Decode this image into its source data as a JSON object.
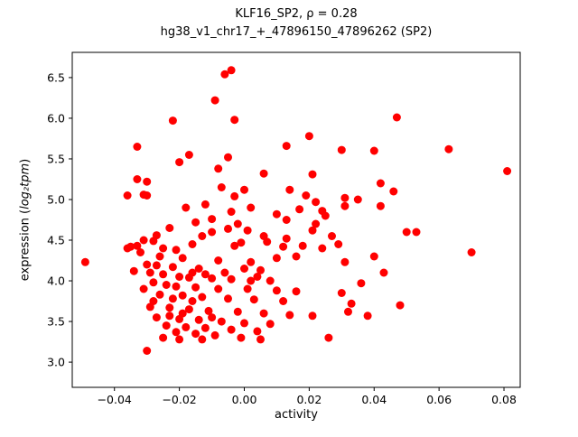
{
  "figure": {
    "title_line1": "KLF16_SP2, ρ = 0.28",
    "title_line2": "hg38_v1_chr17_+_47896150_47896262 (SP2)",
    "ylabel_prefix": "expression (",
    "ylabel_math": "log₂tpm",
    "ylabel_suffix": ")",
    "xlabel": "activity"
  },
  "chart_data": {
    "type": "scatter",
    "title": "KLF16_SP2, ρ = 0.28",
    "subtitle": "hg38_v1_chr17_+_47896150_47896262 (SP2)",
    "xlabel": "activity",
    "ylabel": "expression (log₂tpm)",
    "xlim": [
      -0.053,
      0.085
    ],
    "ylim": [
      2.69,
      6.81
    ],
    "x_ticks": [
      -0.04,
      -0.02,
      0.0,
      0.02,
      0.04,
      0.06,
      0.08
    ],
    "x_tick_labels": [
      "−0.04",
      "−0.02",
      "0.00",
      "0.02",
      "0.04",
      "0.06",
      "0.08"
    ],
    "y_ticks": [
      3.0,
      3.5,
      4.0,
      4.5,
      5.0,
      5.5,
      6.0,
      6.5
    ],
    "y_tick_labels": [
      "3.0",
      "3.5",
      "4.0",
      "4.5",
      "5.0",
      "5.5",
      "6.0",
      "6.5"
    ],
    "grid": false,
    "legend": "none",
    "point_color": "#ff0000",
    "point_radius": 4.5,
    "axis_color": "#000000",
    "points": [
      [
        -0.004,
        6.59
      ],
      [
        -0.006,
        6.54
      ],
      [
        -0.009,
        6.22
      ],
      [
        -0.022,
        5.97
      ],
      [
        -0.003,
        5.98
      ],
      [
        0.047,
        6.01
      ],
      [
        0.02,
        5.78
      ],
      [
        0.013,
        5.66
      ],
      [
        -0.033,
        5.65
      ],
      [
        0.03,
        5.61
      ],
      [
        0.04,
        5.6
      ],
      [
        0.063,
        5.62
      ],
      [
        -0.017,
        5.55
      ],
      [
        -0.005,
        5.52
      ],
      [
        -0.02,
        5.46
      ],
      [
        0.081,
        5.35
      ],
      [
        -0.008,
        5.38
      ],
      [
        0.006,
        5.32
      ],
      [
        0.021,
        5.31
      ],
      [
        -0.033,
        5.25
      ],
      [
        -0.03,
        5.22
      ],
      [
        0.042,
        5.2
      ],
      [
        -0.007,
        5.15
      ],
      [
        0.0,
        5.12
      ],
      [
        0.014,
        5.12
      ],
      [
        0.046,
        5.1
      ],
      [
        -0.031,
        5.06
      ],
      [
        -0.003,
        5.04
      ],
      [
        0.031,
        5.02
      ],
      [
        0.035,
        5.0
      ],
      [
        0.022,
        4.97
      ],
      [
        -0.012,
        4.94
      ],
      [
        0.031,
        4.92
      ],
      [
        0.042,
        4.92
      ],
      [
        0.017,
        4.88
      ],
      [
        0.024,
        4.86
      ],
      [
        -0.004,
        4.85
      ],
      [
        0.01,
        4.82
      ],
      [
        0.025,
        4.8
      ],
      [
        -0.01,
        4.76
      ],
      [
        0.013,
        4.75
      ],
      [
        -0.015,
        4.72
      ],
      [
        -0.002,
        4.7
      ],
      [
        0.022,
        4.7
      ],
      [
        -0.023,
        4.65
      ],
      [
        -0.005,
        4.64
      ],
      [
        0.001,
        4.62
      ],
      [
        0.021,
        4.62
      ],
      [
        -0.01,
        4.6
      ],
      [
        0.05,
        4.6
      ],
      [
        0.053,
        4.6
      ],
      [
        -0.027,
        4.56
      ],
      [
        -0.013,
        4.55
      ],
      [
        -0.031,
        4.5
      ],
      [
        -0.028,
        4.49
      ],
      [
        0.007,
        4.48
      ],
      [
        -0.016,
        4.45
      ],
      [
        -0.003,
        4.43
      ],
      [
        0.012,
        4.42
      ],
      [
        -0.025,
        4.4
      ],
      [
        -0.021,
        4.38
      ],
      [
        0.07,
        4.35
      ],
      [
        -0.049,
        4.23
      ],
      [
        -0.026,
        4.3
      ],
      [
        -0.019,
        4.28
      ],
      [
        -0.008,
        4.25
      ],
      [
        0.002,
        4.23
      ],
      [
        0.031,
        4.23
      ],
      [
        0.04,
        4.3
      ],
      [
        -0.03,
        4.2
      ],
      [
        -0.027,
        4.19
      ],
      [
        -0.022,
        4.17
      ],
      [
        -0.014,
        4.15
      ],
      [
        0.0,
        4.15
      ],
      [
        0.005,
        4.13
      ],
      [
        0.043,
        4.1
      ],
      [
        -0.029,
        4.1
      ],
      [
        -0.025,
        4.08
      ],
      [
        -0.02,
        4.05
      ],
      [
        -0.017,
        4.04
      ],
      [
        -0.01,
        4.03
      ],
      [
        -0.004,
        4.02
      ],
      [
        0.002,
        4.0
      ],
      [
        0.036,
        3.97
      ],
      [
        -0.028,
        3.98
      ],
      [
        -0.024,
        3.95
      ],
      [
        -0.021,
        3.93
      ],
      [
        -0.015,
        3.92
      ],
      [
        -0.008,
        3.9
      ],
      [
        0.001,
        3.9
      ],
      [
        0.01,
        3.88
      ],
      [
        0.016,
        3.87
      ],
      [
        0.03,
        3.85
      ],
      [
        -0.026,
        3.83
      ],
      [
        -0.019,
        3.82
      ],
      [
        -0.013,
        3.8
      ],
      [
        -0.005,
        3.78
      ],
      [
        0.003,
        3.77
      ],
      [
        0.012,
        3.75
      ],
      [
        0.033,
        3.72
      ],
      [
        0.048,
        3.7
      ],
      [
        -0.029,
        3.68
      ],
      [
        -0.023,
        3.67
      ],
      [
        -0.017,
        3.65
      ],
      [
        -0.011,
        3.63
      ],
      [
        -0.002,
        3.62
      ],
      [
        0.006,
        3.6
      ],
      [
        0.014,
        3.58
      ],
      [
        0.021,
        3.57
      ],
      [
        -0.027,
        3.55
      ],
      [
        -0.02,
        3.53
      ],
      [
        -0.014,
        3.52
      ],
      [
        -0.007,
        3.5
      ],
      [
        0.0,
        3.48
      ],
      [
        0.008,
        3.47
      ],
      [
        -0.024,
        3.45
      ],
      [
        -0.018,
        3.43
      ],
      [
        -0.012,
        3.42
      ],
      [
        -0.004,
        3.4
      ],
      [
        0.004,
        3.38
      ],
      [
        -0.021,
        3.37
      ],
      [
        -0.015,
        3.35
      ],
      [
        -0.009,
        3.33
      ],
      [
        -0.001,
        3.3
      ],
      [
        -0.03,
        3.14
      ],
      [
        -0.035,
        4.42
      ],
      [
        -0.036,
        4.4
      ],
      [
        -0.032,
        4.35
      ],
      [
        -0.034,
        4.12
      ],
      [
        -0.031,
        3.9
      ],
      [
        -0.016,
        4.1
      ],
      [
        -0.012,
        4.08
      ],
      [
        -0.006,
        4.1
      ],
      [
        0.004,
        4.05
      ],
      [
        0.008,
        4.0
      ],
      [
        0.018,
        4.43
      ],
      [
        0.016,
        4.3
      ],
      [
        0.01,
        4.28
      ],
      [
        0.006,
        4.55
      ],
      [
        0.013,
        4.52
      ],
      [
        0.027,
        4.55
      ],
      [
        0.029,
        4.45
      ],
      [
        0.024,
        4.4
      ],
      [
        -0.001,
        4.47
      ],
      [
        -0.036,
        5.05
      ],
      [
        -0.03,
        5.05
      ],
      [
        0.019,
        5.05
      ],
      [
        0.002,
        4.9
      ],
      [
        -0.018,
        4.9
      ],
      [
        -0.033,
        4.43
      ],
      [
        0.038,
        3.57
      ],
      [
        0.032,
        3.62
      ],
      [
        0.026,
        3.3
      ],
      [
        0.005,
        3.28
      ],
      [
        -0.01,
        3.55
      ],
      [
        -0.019,
        3.6
      ],
      [
        -0.023,
        3.57
      ],
      [
        -0.025,
        3.3
      ],
      [
        -0.02,
        3.28
      ],
      [
        -0.013,
        3.28
      ],
      [
        -0.016,
        3.75
      ],
      [
        -0.022,
        3.78
      ],
      [
        -0.028,
        3.75
      ]
    ]
  }
}
